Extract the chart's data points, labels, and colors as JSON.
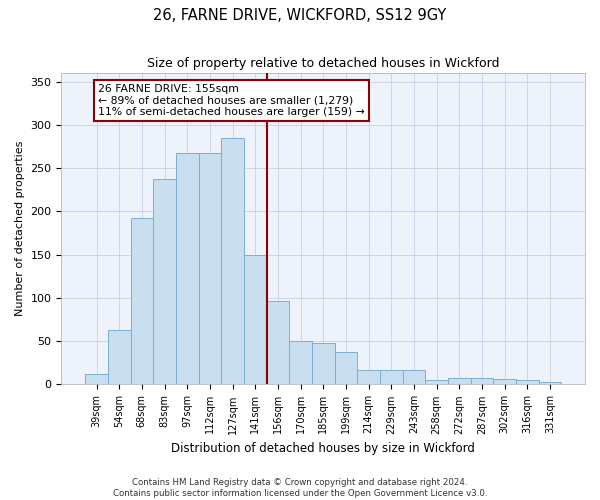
{
  "title": "26, FARNE DRIVE, WICKFORD, SS12 9GY",
  "subtitle": "Size of property relative to detached houses in Wickford",
  "xlabel": "Distribution of detached houses by size in Wickford",
  "ylabel": "Number of detached properties",
  "categories": [
    "39sqm",
    "54sqm",
    "68sqm",
    "83sqm",
    "97sqm",
    "112sqm",
    "127sqm",
    "141sqm",
    "156sqm",
    "170sqm",
    "185sqm",
    "199sqm",
    "214sqm",
    "229sqm",
    "243sqm",
    "258sqm",
    "272sqm",
    "287sqm",
    "302sqm",
    "316sqm",
    "331sqm"
  ],
  "values": [
    12,
    63,
    192,
    238,
    268,
    268,
    285,
    150,
    97,
    50,
    48,
    37,
    17,
    17,
    17,
    5,
    7,
    7,
    6,
    5,
    3
  ],
  "bar_color": "#c9dff0",
  "bar_edge_color": "#7aafd4",
  "vline_color": "#8b0000",
  "annotation_text": "26 FARNE DRIVE: 155sqm\n← 89% of detached houses are smaller (1,279)\n11% of semi-detached houses are larger (159) →",
  "annotation_box_color": "#8b0000",
  "ylim": [
    0,
    360
  ],
  "yticks": [
    0,
    50,
    100,
    150,
    200,
    250,
    300,
    350
  ],
  "bg_color": "#eef2fb",
  "grid_color": "#c8cfe8",
  "footer_line1": "Contains HM Land Registry data © Crown copyright and database right 2024.",
  "footer_line2": "Contains public sector information licensed under the Open Government Licence v3.0."
}
